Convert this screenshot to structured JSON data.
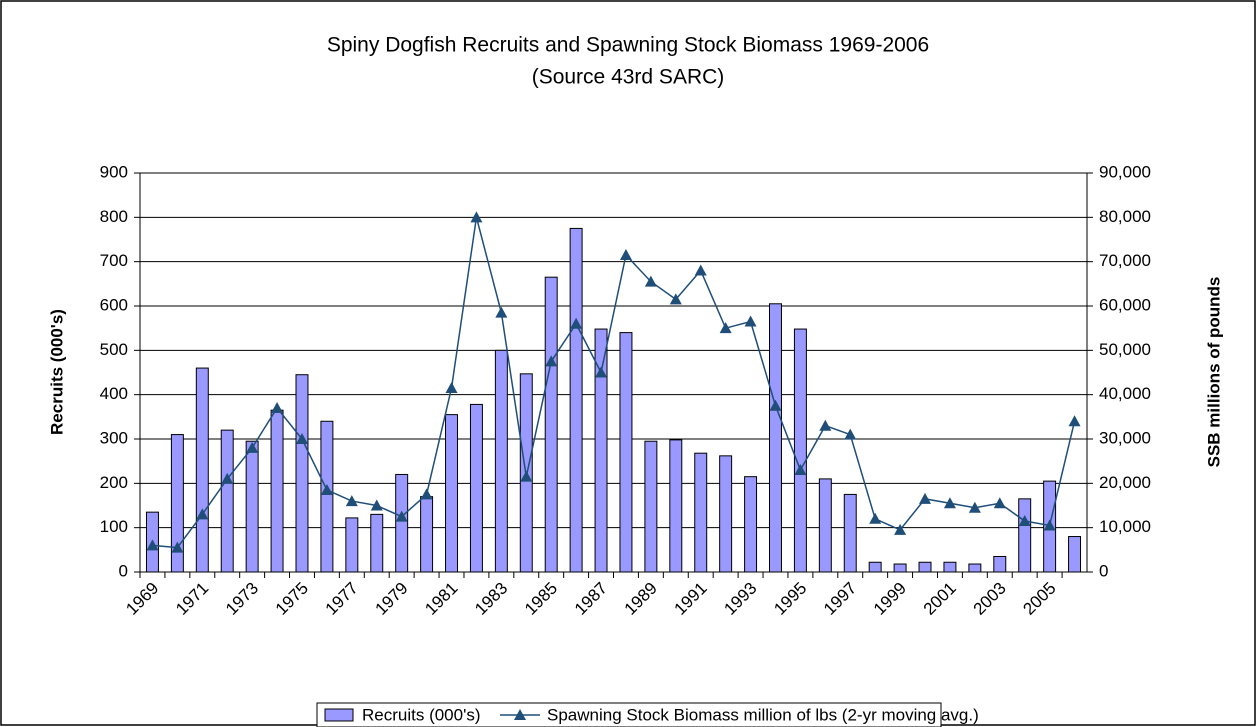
{
  "chart_data": {
    "type": "bar_line",
    "title": "Spiny Dogfish Recruits and Spawning Stock Biomass 1969-2006",
    "subtitle": "(Source 43rd SARC)",
    "y_label": "Recruits (000's)",
    "y2_label": "SSB millions of pounds",
    "categories": [
      "1969",
      null,
      "1971",
      null,
      "1973",
      null,
      "1975",
      null,
      "1977",
      null,
      "1979",
      null,
      "1981",
      null,
      "1983",
      null,
      "1985",
      null,
      "1987",
      null,
      "1989",
      null,
      "1991",
      null,
      "1993",
      null,
      "1995",
      null,
      "1997",
      null,
      "1999",
      null,
      "2001",
      null,
      "2003",
      null,
      "2005",
      null
    ],
    "series": [
      {
        "name": "Recruits (000's)",
        "type": "bar",
        "color": "#9999ff",
        "values": [
          135,
          310,
          460,
          320,
          295,
          365,
          445,
          340,
          122,
          130,
          220,
          170,
          355,
          378,
          500,
          447,
          665,
          775,
          548,
          540,
          295,
          298,
          268,
          262,
          215,
          605,
          548,
          210,
          175,
          22,
          18,
          22,
          22,
          18,
          35,
          165,
          205,
          80
        ]
      },
      {
        "name": "Spawning Stock Biomass million of lbs (2-yr moving avg.)",
        "type": "line",
        "color": "#1f4e79",
        "axis": "y2",
        "values": [
          6000,
          5500,
          13000,
          21000,
          28000,
          37000,
          30000,
          18500,
          16000,
          15000,
          12500,
          17500,
          41500,
          80000,
          58500,
          21500,
          47500,
          56000,
          45000,
          71500,
          65500,
          61500,
          68000,
          55000,
          56500,
          37500,
          23000,
          33000,
          31000,
          12000,
          9500,
          16500,
          15500,
          14500,
          15500,
          11500,
          10500,
          34000
        ]
      }
    ],
    "ylim": [
      0,
      900
    ],
    "yticks": [
      0,
      100,
      200,
      300,
      400,
      500,
      600,
      700,
      800,
      900
    ],
    "y2lim": [
      0,
      90000
    ],
    "y2ticks": [
      0,
      {
        "value": 10000,
        "label": "10,000"
      },
      {
        "value": 20000,
        "label": "20,000"
      },
      {
        "value": 30000,
        "label": "30,000"
      },
      {
        "value": 40000,
        "label": "40,000"
      },
      {
        "value": 50000,
        "label": "50,000"
      },
      {
        "value": 60000,
        "label": "60,000"
      },
      {
        "value": 70000,
        "label": "70,000"
      },
      {
        "value": 80000,
        "label": "80,000"
      },
      {
        "value": 90000,
        "label": "90,000"
      }
    ],
    "grid": true,
    "legend": "bottom"
  }
}
